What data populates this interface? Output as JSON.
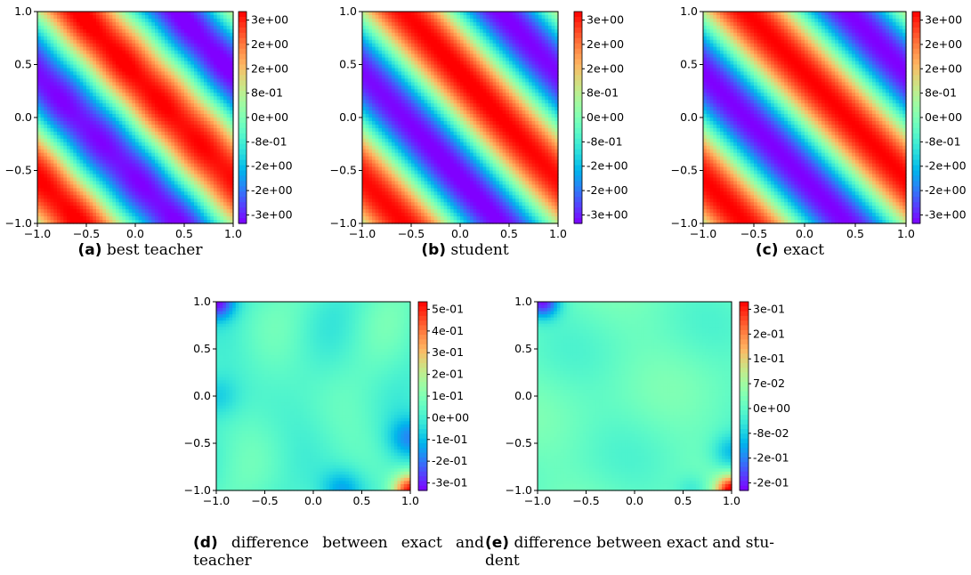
{
  "chart_data": [
    {
      "id": "a",
      "type": "heatmap",
      "field": "teacher",
      "title": "",
      "xlabel": "",
      "ylabel": "",
      "xlim": [
        -1.0,
        1.0
      ],
      "ylim": [
        -1.0,
        1.0
      ],
      "x_ticks": [
        "−1.0",
        "−0.5",
        "0.0",
        "0.5",
        "1.0"
      ],
      "y_ticks": [
        "−1.0",
        "−0.5",
        "0.0",
        "0.5",
        "1.0"
      ],
      "colorbar_ticks": [
        "3e+00",
        "2e+00",
        "2e+00",
        "8e-01",
        "0e+00",
        "-8e-01",
        "-2e+00",
        "-2e+00",
        "-3e+00"
      ],
      "colormap": "rainbow",
      "caption_tag": "(a)",
      "caption": "best teacher"
    },
    {
      "id": "b",
      "type": "heatmap",
      "field": "student",
      "title": "",
      "xlabel": "",
      "ylabel": "",
      "xlim": [
        -1.0,
        1.0
      ],
      "ylim": [
        -1.0,
        1.0
      ],
      "x_ticks": [
        "−1.0",
        "−0.5",
        "0.0",
        "0.5",
        "1.0"
      ],
      "y_ticks": [
        "−1.0",
        "−0.5",
        "0.0",
        "0.5",
        "1.0"
      ],
      "colorbar_ticks": [
        "3e+00",
        "2e+00",
        "2e+00",
        "8e-01",
        "0e+00",
        "-8e-01",
        "-2e+00",
        "-2e+00",
        "-3e+00"
      ],
      "colormap": "rainbow",
      "caption_tag": "(b)",
      "caption": "student"
    },
    {
      "id": "c",
      "type": "heatmap",
      "field": "exact",
      "title": "",
      "xlabel": "",
      "ylabel": "",
      "xlim": [
        -1.0,
        1.0
      ],
      "ylim": [
        -1.0,
        1.0
      ],
      "x_ticks": [
        "−1.0",
        "−0.5",
        "0.0",
        "0.5",
        "1.0"
      ],
      "y_ticks": [
        "−1.0",
        "−0.5",
        "0.0",
        "0.5",
        "1.0"
      ],
      "colorbar_ticks": [
        "3e+00",
        "2e+00",
        "2e+00",
        "8e-01",
        "0e+00",
        "-8e-01",
        "-2e+00",
        "-2e+00",
        "-3e+00"
      ],
      "colormap": "rainbow",
      "caption_tag": "(c)",
      "caption": "exact"
    },
    {
      "id": "d",
      "type": "heatmap",
      "field": "diff_teacher",
      "title": "",
      "xlabel": "",
      "ylabel": "",
      "xlim": [
        -1.0,
        1.0
      ],
      "ylim": [
        -1.0,
        1.0
      ],
      "x_ticks": [
        "−1.0",
        "−0.5",
        "0.0",
        "0.5",
        "1.0"
      ],
      "y_ticks": [
        "−1.0",
        "−0.5",
        "0.0",
        "0.5",
        "1.0"
      ],
      "colorbar_ticks": [
        "5e-01",
        "4e-01",
        "3e-01",
        "2e-01",
        "1e-01",
        "0e+00",
        "-1e-01",
        "-2e-01",
        "-3e-01"
      ],
      "colormap": "rainbow",
      "caption_tag": "(d)",
      "caption": "difference between exact and teacher"
    },
    {
      "id": "e",
      "type": "heatmap",
      "field": "diff_student",
      "title": "",
      "xlabel": "",
      "ylabel": "",
      "xlim": [
        -1.0,
        1.0
      ],
      "ylim": [
        -1.0,
        1.0
      ],
      "x_ticks": [
        "−1.0",
        "−0.5",
        "0.0",
        "0.5",
        "1.0"
      ],
      "y_ticks": [
        "−1.0",
        "−0.5",
        "0.0",
        "0.5",
        "1.0"
      ],
      "colorbar_ticks": [
        "3e-01",
        "2e-01",
        "1e-01",
        "7e-02",
        "0e+00",
        "-8e-02",
        "-2e-01",
        "-2e-01"
      ],
      "colormap": "rainbow",
      "caption_tag": "(e)",
      "caption": "difference between exact and stu-dent"
    }
  ]
}
